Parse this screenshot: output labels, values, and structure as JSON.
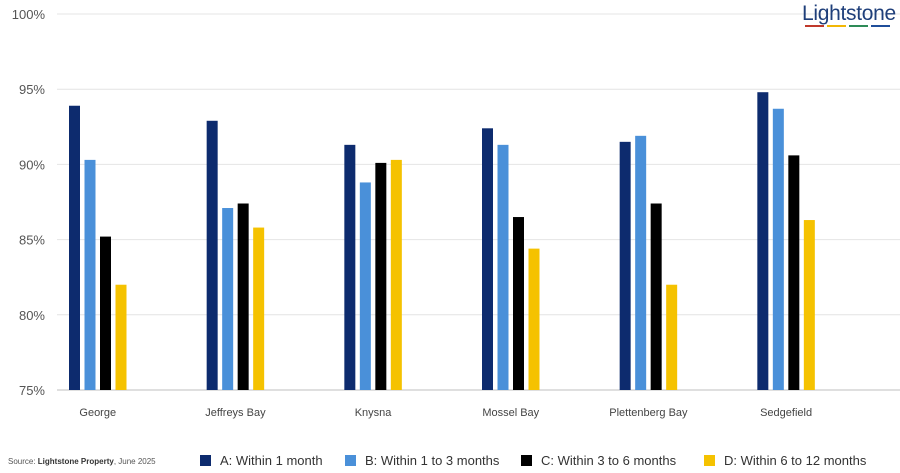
{
  "logo": {
    "text": "Lightstone",
    "stripe_colors": [
      "#c0392b",
      "#f2b705",
      "#2e8b57",
      "#1f4e9a"
    ]
  },
  "source": {
    "prefix": "Source: ",
    "org": "Lightstone Property",
    "date": ", June 2025"
  },
  "chart_data": {
    "type": "bar",
    "title": "",
    "xlabel": "",
    "ylabel": "",
    "ylim": [
      75,
      100
    ],
    "y_ticks": [
      "75%",
      "80%",
      "85%",
      "90%",
      "95%",
      "100%"
    ],
    "grid": true,
    "legend_position": "bottom",
    "categories": [
      "George",
      "Jeffreys Bay",
      "Knysna",
      "Mossel Bay",
      "Plettenberg Bay",
      "Sedgefield"
    ],
    "series": [
      {
        "name": "A: Within 1 month",
        "color": "#0d2b6e",
        "values": [
          93.9,
          92.9,
          91.3,
          92.4,
          91.5,
          94.8
        ]
      },
      {
        "name": "B: Within 1 to 3 months",
        "color": "#4a90d9",
        "values": [
          90.3,
          87.1,
          88.8,
          91.3,
          91.9,
          93.7
        ]
      },
      {
        "name": "C: Within 3 to 6 months",
        "color": "#000000",
        "values": [
          85.2,
          87.4,
          90.1,
          86.5,
          87.4,
          90.6
        ]
      },
      {
        "name": "D: Within 6 to 12 months",
        "color": "#f5c200",
        "values": [
          82.0,
          85.8,
          90.3,
          84.4,
          82.0,
          86.3
        ]
      }
    ]
  }
}
